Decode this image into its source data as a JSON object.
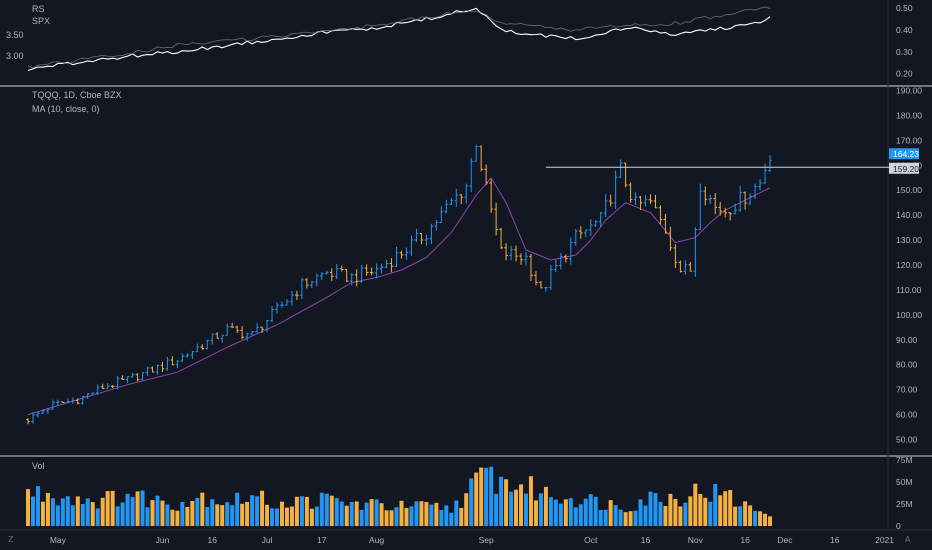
{
  "colors": {
    "background": "#131722",
    "up": "#2196f3",
    "down": "#f5b041",
    "ma": "#8e44ad",
    "rs_line": "#ffffff",
    "spx_line": "#787b86",
    "hline": "#d1d4dc",
    "price_tag_current": "#2196f3",
    "price_tag_level": "#d1d4dc"
  },
  "icons": {
    "corner_left": "zoom-icon",
    "corner_right": "auto-scale-icon"
  },
  "corner_left_text": "Z",
  "corner_right_text": "A",
  "chart_data": [
    {
      "type": "line",
      "title": "",
      "legend": [
        "RS",
        "SPX"
      ],
      "y_ticks_left": [
        "3.50",
        "3.00"
      ],
      "y_ticks_right": [
        "0.50",
        "0.40",
        "0.30",
        "0.20"
      ],
      "ylim": [
        0.18,
        0.51
      ],
      "x_index_range": [
        0,
        149
      ],
      "series": [
        {
          "name": "RS",
          "x": [
            0,
            10,
            20,
            30,
            40,
            50,
            60,
            70,
            80,
            90,
            95,
            100,
            110,
            120,
            130,
            140,
            145,
            149
          ],
          "values": [
            0.22,
            0.25,
            0.28,
            0.3,
            0.33,
            0.36,
            0.39,
            0.41,
            0.45,
            0.5,
            0.4,
            0.38,
            0.36,
            0.41,
            0.38,
            0.41,
            0.42,
            0.46
          ]
        },
        {
          "name": "SPX",
          "x": [
            0,
            10,
            20,
            30,
            40,
            50,
            60,
            70,
            80,
            90,
            95,
            100,
            110,
            120,
            130,
            140,
            145,
            149
          ],
          "values": [
            0.23,
            0.26,
            0.29,
            0.33,
            0.35,
            0.37,
            0.4,
            0.42,
            0.46,
            0.49,
            0.43,
            0.42,
            0.4,
            0.42,
            0.43,
            0.47,
            0.49,
            0.5
          ]
        }
      ]
    },
    {
      "type": "line",
      "title": "TQQQ, 1D, Cboe BZX",
      "indicator": "MA (10, close, 0)",
      "y_ticks": [
        "190.00",
        "180.00",
        "170.00",
        "160.00",
        "150.00",
        "140.00",
        "130.00",
        "120.00",
        "110.00",
        "100.00",
        "90.00",
        "80.00",
        "70.00",
        "60.00",
        "50.00"
      ],
      "ylim": [
        45,
        191
      ],
      "x_index_range": [
        0,
        149
      ],
      "x_ticks": [
        {
          "label": "May",
          "i": 6
        },
        {
          "label": "Jun",
          "i": 27
        },
        {
          "label": "16",
          "i": 37
        },
        {
          "label": "Jul",
          "i": 48
        },
        {
          "label": "17",
          "i": 59
        },
        {
          "label": "Aug",
          "i": 70
        },
        {
          "label": "Sep",
          "i": 92
        },
        {
          "label": "Oct",
          "i": 113
        },
        {
          "label": "16",
          "i": 124
        },
        {
          "label": "Nov",
          "i": 134
        },
        {
          "label": "16",
          "i": 144
        },
        {
          "label": "Dec",
          "i": 152
        },
        {
          "label": "16",
          "i": 162
        },
        {
          "label": "2021",
          "i": 172
        },
        {
          "label": "A",
          "i": 182
        }
      ],
      "series": [
        {
          "name": "TQQQ",
          "x": [
            0,
            5,
            10,
            15,
            20,
            25,
            30,
            35,
            40,
            45,
            50,
            55,
            60,
            65,
            70,
            75,
            80,
            85,
            88,
            90,
            92,
            95,
            100,
            103,
            105,
            110,
            115,
            119,
            122,
            125,
            128,
            131,
            133,
            135,
            138,
            140,
            143,
            147,
            149
          ],
          "values": [
            58,
            64,
            66,
            71,
            74,
            78,
            82,
            88,
            94,
            92,
            102,
            112,
            117,
            115,
            118,
            125,
            133,
            145,
            152,
            170,
            150,
            125,
            123,
            109,
            116,
            131,
            138,
            158,
            144,
            145,
            134,
            118,
            118,
            153,
            143,
            142,
            146,
            153,
            165
          ]
        },
        {
          "name": "MA (10, close, 0)",
          "x": [
            0,
            10,
            20,
            30,
            40,
            50,
            60,
            65,
            70,
            75,
            80,
            85,
            90,
            93,
            96,
            100,
            105,
            110,
            113,
            116,
            120,
            125,
            130,
            134,
            137,
            140,
            143,
            146,
            149
          ],
          "values": [
            60,
            66,
            72,
            77,
            87,
            96,
            107,
            113,
            115,
            118,
            123,
            133,
            148,
            155,
            145,
            126,
            122,
            124,
            130,
            138,
            145,
            141,
            129,
            131,
            137,
            142,
            145,
            148,
            151
          ]
        }
      ],
      "horizontal_line": {
        "value": 159.2,
        "x_start": 104
      },
      "price_labels": {
        "current": "164.23",
        "level": "159.20"
      }
    },
    {
      "type": "bar",
      "title": "Vol",
      "y_ticks": [
        "75M",
        "50M",
        "25M",
        "0"
      ],
      "ylim": [
        0,
        75
      ],
      "x_index_range": [
        0,
        149
      ],
      "series": [
        {
          "name": "Vol",
          "x": [
            0,
            5,
            10,
            15,
            20,
            25,
            30,
            35,
            40,
            45,
            50,
            55,
            60,
            65,
            70,
            75,
            80,
            85,
            90,
            92,
            95,
            100,
            105,
            110,
            115,
            120,
            125,
            130,
            135,
            140,
            145,
            149
          ],
          "values": [
            38,
            35,
            32,
            29,
            36,
            30,
            26,
            34,
            28,
            33,
            26,
            28,
            30,
            25,
            24,
            22,
            22,
            20,
            48,
            60,
            50,
            44,
            35,
            32,
            27,
            22,
            33,
            32,
            40,
            35,
            20,
            16
          ]
        }
      ]
    }
  ]
}
